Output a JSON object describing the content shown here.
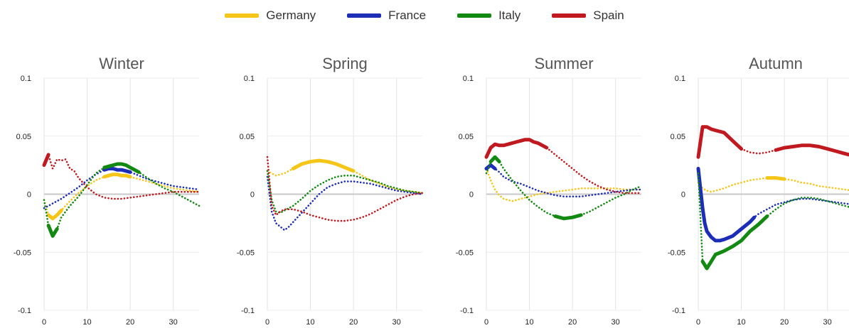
{
  "legend": [
    {
      "name": "Germany",
      "color": "#f5c518"
    },
    {
      "name": "France",
      "color": "#1c2db8"
    },
    {
      "name": "Italy",
      "color": "#128a12"
    },
    {
      "name": "Spain",
      "color": "#c0191f"
    }
  ],
  "chart_data": [
    {
      "type": "line",
      "title": "Winter",
      "xlim": [
        0,
        36
      ],
      "ylim": [
        -0.1,
        0.1
      ],
      "xticks": [
        "0",
        "10",
        "20",
        "30"
      ],
      "yticks": [
        "0.1",
        "0.05",
        "0",
        "-0.05",
        "-0.1"
      ],
      "grid": true,
      "series": [
        {
          "name": "Germany",
          "x": [
            0,
            1,
            2,
            3,
            4,
            6,
            8,
            10,
            12,
            14,
            15,
            16,
            17,
            18,
            19,
            20,
            22,
            24,
            26,
            28,
            30,
            32,
            34,
            36
          ],
          "y": [
            -0.005,
            -0.018,
            -0.021,
            -0.018,
            -0.014,
            -0.006,
            0.001,
            0.007,
            0.012,
            0.015,
            0.016,
            0.017,
            0.017,
            0.016,
            0.016,
            0.015,
            0.013,
            0.011,
            0.009,
            0.007,
            0.005,
            0.004,
            0.003,
            0.002
          ],
          "solid": [
            [
              1,
              4
            ],
            [
              14,
              20
            ]
          ]
        },
        {
          "name": "France",
          "x": [
            0,
            1,
            2,
            4,
            6,
            8,
            10,
            12,
            14,
            15,
            16,
            17,
            18,
            19,
            20,
            22,
            24,
            26,
            28,
            30,
            32,
            34,
            36
          ],
          "y": [
            -0.012,
            -0.01,
            -0.008,
            -0.004,
            0.001,
            0.006,
            0.012,
            0.017,
            0.021,
            0.022,
            0.022,
            0.021,
            0.021,
            0.02,
            0.019,
            0.016,
            0.013,
            0.011,
            0.009,
            0.007,
            0.006,
            0.005,
            0.004
          ],
          "solid": [
            [
              14,
              20
            ]
          ]
        },
        {
          "name": "Italy",
          "x": [
            0,
            1,
            2,
            3,
            4,
            6,
            8,
            10,
            12,
            14,
            15,
            16,
            17,
            18,
            19,
            20,
            21,
            22,
            24,
            26,
            28,
            30,
            32,
            34,
            36
          ],
          "y": [
            -0.005,
            -0.027,
            -0.036,
            -0.03,
            -0.02,
            -0.01,
            -0.002,
            0.008,
            0.018,
            0.023,
            0.024,
            0.025,
            0.026,
            0.026,
            0.025,
            0.023,
            0.021,
            0.019,
            0.014,
            0.009,
            0.005,
            0.002,
            -0.002,
            -0.006,
            -0.01
          ],
          "solid": [
            [
              1,
              3
            ],
            [
              14,
              22
            ]
          ]
        },
        {
          "name": "Spain",
          "x": [
            0,
            1,
            2,
            3,
            4,
            5,
            6,
            7,
            8,
            10,
            12,
            14,
            16,
            18,
            20,
            22,
            24,
            26,
            28,
            30,
            32,
            34,
            36
          ],
          "y": [
            0.025,
            0.034,
            0.022,
            0.03,
            0.029,
            0.03,
            0.022,
            0.02,
            0.014,
            0.006,
            0.0,
            -0.003,
            -0.004,
            -0.004,
            -0.003,
            -0.002,
            -0.001,
            0.0,
            0.001,
            0.002,
            0.002,
            0.002,
            0.002
          ],
          "solid": [
            [
              0,
              1
            ]
          ]
        }
      ]
    },
    {
      "type": "line",
      "title": "Spring",
      "xlim": [
        0,
        36
      ],
      "ylim": [
        -0.1,
        0.1
      ],
      "xticks": [
        "0",
        "10",
        "20",
        "30"
      ],
      "yticks": [
        "0.1",
        "0.05",
        "0",
        "-0.05",
        "-0.1"
      ],
      "grid": true,
      "series": [
        {
          "name": "Germany",
          "x": [
            0,
            1,
            2,
            4,
            6,
            8,
            10,
            12,
            14,
            16,
            18,
            20,
            22,
            24,
            26,
            28,
            30,
            32,
            34,
            36
          ],
          "y": [
            0.02,
            0.018,
            0.016,
            0.018,
            0.022,
            0.026,
            0.028,
            0.029,
            0.028,
            0.026,
            0.023,
            0.02,
            0.016,
            0.012,
            0.009,
            0.006,
            0.004,
            0.003,
            0.002,
            0.001
          ],
          "solid": [
            [
              6,
              20
            ]
          ]
        },
        {
          "name": "France",
          "x": [
            0,
            1,
            2,
            3,
            4,
            5,
            6,
            8,
            10,
            12,
            14,
            16,
            18,
            20,
            22,
            24,
            26,
            28,
            30,
            32,
            34,
            36
          ],
          "y": [
            0.015,
            -0.015,
            -0.025,
            -0.028,
            -0.031,
            -0.028,
            -0.024,
            -0.016,
            -0.008,
            0.0,
            0.006,
            0.009,
            0.011,
            0.011,
            0.01,
            0.009,
            0.007,
            0.005,
            0.003,
            0.002,
            0.001,
            0.0
          ],
          "solid": []
        },
        {
          "name": "Italy",
          "x": [
            0,
            1,
            2,
            3,
            4,
            6,
            8,
            10,
            12,
            14,
            16,
            18,
            20,
            22,
            24,
            26,
            28,
            30,
            32,
            34,
            36
          ],
          "y": [
            0.02,
            -0.005,
            -0.015,
            -0.016,
            -0.014,
            -0.01,
            -0.004,
            0.003,
            0.008,
            0.012,
            0.015,
            0.016,
            0.016,
            0.014,
            0.012,
            0.01,
            0.007,
            0.005,
            0.003,
            0.002,
            0.001
          ],
          "solid": []
        },
        {
          "name": "Spain",
          "x": [
            0,
            1,
            2,
            3,
            4,
            6,
            8,
            10,
            12,
            14,
            16,
            18,
            20,
            22,
            24,
            26,
            28,
            30,
            32,
            34,
            36
          ],
          "y": [
            0.032,
            -0.01,
            -0.018,
            -0.015,
            -0.013,
            -0.013,
            -0.015,
            -0.018,
            -0.02,
            -0.022,
            -0.023,
            -0.023,
            -0.022,
            -0.02,
            -0.017,
            -0.013,
            -0.009,
            -0.005,
            -0.002,
            0.0,
            0.001
          ],
          "solid": []
        }
      ]
    },
    {
      "type": "line",
      "title": "Summer",
      "xlim": [
        0,
        36
      ],
      "ylim": [
        -0.1,
        0.1
      ],
      "xticks": [
        "0",
        "10",
        "20",
        "30"
      ],
      "yticks": [
        "0.1",
        "0.05",
        "0",
        "-0.05",
        "-0.1"
      ],
      "grid": true,
      "series": [
        {
          "name": "Germany",
          "x": [
            0,
            1,
            2,
            3,
            4,
            6,
            8,
            10,
            12,
            14,
            16,
            18,
            20,
            22,
            24,
            26,
            28,
            30,
            32,
            34,
            36
          ],
          "y": [
            0.022,
            0.012,
            0.004,
            -0.001,
            -0.004,
            -0.006,
            -0.004,
            -0.002,
            0.0,
            0.001,
            0.002,
            0.003,
            0.004,
            0.005,
            0.005,
            0.005,
            0.005,
            0.005,
            0.004,
            0.004,
            0.004
          ],
          "solid": []
        },
        {
          "name": "France",
          "x": [
            0,
            1,
            2,
            3,
            4,
            6,
            8,
            10,
            12,
            14,
            16,
            18,
            20,
            22,
            24,
            26,
            28,
            30,
            32,
            34,
            36
          ],
          "y": [
            0.022,
            0.025,
            0.022,
            0.019,
            0.015,
            0.011,
            0.009,
            0.006,
            0.003,
            0.001,
            -0.001,
            -0.002,
            -0.002,
            -0.002,
            -0.001,
            0.0,
            0.001,
            0.002,
            0.003,
            0.004,
            0.004
          ],
          "solid": [
            [
              0,
              2
            ]
          ]
        },
        {
          "name": "Italy",
          "x": [
            0,
            1,
            2,
            3,
            4,
            6,
            8,
            10,
            12,
            14,
            16,
            18,
            20,
            22,
            24,
            26,
            28,
            30,
            32,
            34,
            36
          ],
          "y": [
            0.018,
            0.028,
            0.032,
            0.028,
            0.022,
            0.012,
            0.003,
            -0.005,
            -0.011,
            -0.016,
            -0.019,
            -0.021,
            -0.02,
            -0.018,
            -0.015,
            -0.011,
            -0.007,
            -0.003,
            0.0,
            0.004,
            0.007
          ],
          "solid": [
            [
              1,
              3
            ],
            [
              16,
              22
            ]
          ]
        },
        {
          "name": "Spain",
          "x": [
            0,
            1,
            2,
            3,
            4,
            5,
            6,
            7,
            8,
            9,
            10,
            11,
            12,
            14,
            16,
            18,
            20,
            22,
            24,
            26,
            28,
            30,
            32,
            34,
            36
          ],
          "y": [
            0.032,
            0.04,
            0.043,
            0.042,
            0.042,
            0.043,
            0.044,
            0.045,
            0.046,
            0.047,
            0.047,
            0.045,
            0.044,
            0.04,
            0.034,
            0.028,
            0.022,
            0.016,
            0.011,
            0.007,
            0.004,
            0.002,
            0.001,
            0.001,
            0.001
          ],
          "solid": [
            [
              0,
              14
            ]
          ]
        }
      ]
    },
    {
      "type": "line",
      "title": "Autumn",
      "xlim": [
        0,
        36
      ],
      "ylim": [
        -0.1,
        0.1
      ],
      "xticks": [
        "0",
        "10",
        "20",
        "30"
      ],
      "yticks": [
        "0.1",
        "0.05",
        "0",
        "-0.05",
        "-0.1"
      ],
      "grid": true,
      "series": [
        {
          "name": "Germany",
          "x": [
            0,
            1,
            2,
            3,
            4,
            6,
            8,
            10,
            12,
            14,
            16,
            18,
            20,
            22,
            24,
            26,
            28,
            30,
            32,
            34,
            36
          ],
          "y": [
            0.01,
            0.005,
            0.003,
            0.002,
            0.003,
            0.005,
            0.008,
            0.01,
            0.012,
            0.013,
            0.014,
            0.014,
            0.013,
            0.012,
            0.01,
            0.009,
            0.007,
            0.006,
            0.005,
            0.004,
            0.003
          ],
          "solid": [
            [
              15,
              20
            ]
          ]
        },
        {
          "name": "France",
          "x": [
            0,
            0.5,
            1,
            1.5,
            2,
            3,
            4,
            5,
            6,
            8,
            10,
            12,
            13,
            14,
            16,
            18,
            20,
            22,
            24,
            26,
            28,
            30,
            32,
            34,
            36
          ],
          "y": [
            0.022,
            0.005,
            -0.012,
            -0.025,
            -0.032,
            -0.037,
            -0.04,
            -0.04,
            -0.039,
            -0.036,
            -0.03,
            -0.024,
            -0.02,
            -0.017,
            -0.013,
            -0.009,
            -0.007,
            -0.005,
            -0.004,
            -0.004,
            -0.005,
            -0.006,
            -0.007,
            -0.008,
            -0.009
          ],
          "solid": [
            [
              0,
              13
            ]
          ]
        },
        {
          "name": "Italy",
          "x": [
            0,
            1,
            2,
            3,
            4,
            6,
            8,
            10,
            12,
            14,
            16,
            18,
            20,
            22,
            24,
            26,
            28,
            30,
            32,
            34,
            36
          ],
          "y": [
            0.018,
            -0.058,
            -0.064,
            -0.058,
            -0.052,
            -0.049,
            -0.045,
            -0.04,
            -0.032,
            -0.026,
            -0.019,
            -0.013,
            -0.008,
            -0.005,
            -0.003,
            -0.003,
            -0.004,
            -0.006,
            -0.008,
            -0.01,
            -0.012
          ],
          "solid": [
            [
              1,
              16
            ]
          ]
        },
        {
          "name": "Spain",
          "x": [
            0,
            1,
            2,
            3,
            4,
            6,
            8,
            10,
            12,
            14,
            16,
            18,
            20,
            22,
            24,
            26,
            28,
            30,
            32,
            34,
            36
          ],
          "y": [
            0.032,
            0.058,
            0.058,
            0.056,
            0.055,
            0.053,
            0.046,
            0.039,
            0.036,
            0.035,
            0.036,
            0.038,
            0.04,
            0.041,
            0.042,
            0.042,
            0.041,
            0.039,
            0.037,
            0.035,
            0.033
          ],
          "solid": [
            [
              0,
              10
            ],
            [
              18,
              36
            ]
          ]
        }
      ]
    }
  ]
}
